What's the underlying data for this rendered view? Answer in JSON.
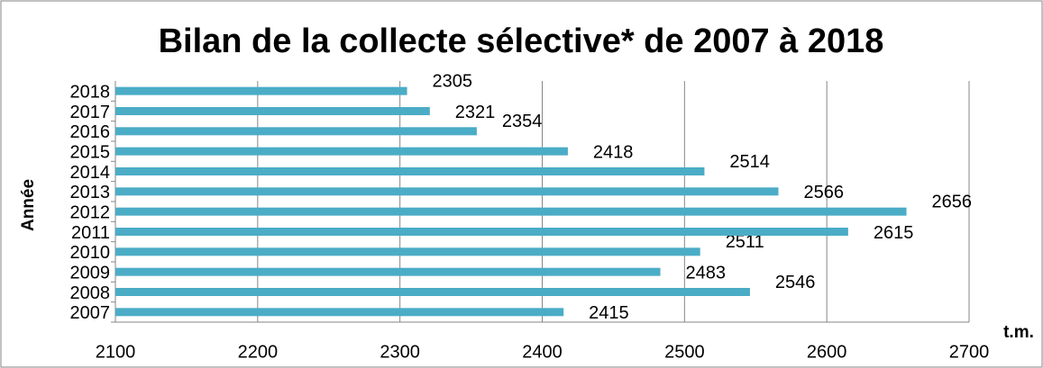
{
  "chart_data": {
    "type": "bar",
    "orientation": "horizontal",
    "title": "Bilan de la collecte sélective* de 2007 à 2018",
    "y_label": "Année",
    "x_label": "t.m.",
    "categories": [
      "2007",
      "2008",
      "2009",
      "2010",
      "2011",
      "2012",
      "2013",
      "2014",
      "2015",
      "2016",
      "2017",
      "2018"
    ],
    "values": [
      2415,
      2546,
      2483,
      2511,
      2615,
      2656,
      2566,
      2514,
      2418,
      2354,
      2321,
      2305
    ],
    "color": "#4bacc6",
    "xlim": [
      2100,
      2700
    ],
    "xticks": [
      2100,
      2200,
      2300,
      2400,
      2500,
      2600,
      2700
    ],
    "grid": true
  }
}
